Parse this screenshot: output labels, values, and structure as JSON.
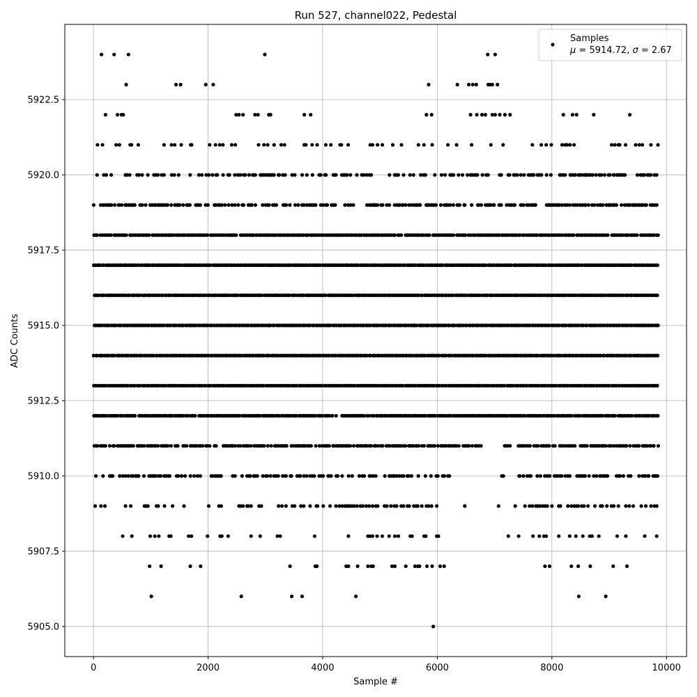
{
  "chart_data": {
    "type": "scatter",
    "title": "Run 527, channel022, Pedestal",
    "xlabel": "Sample #",
    "ylabel": "ADC Counts",
    "xlim": [
      -500,
      10350
    ],
    "ylim": [
      5904.0,
      5925.0
    ],
    "xticks": [
      0,
      2000,
      4000,
      6000,
      8000,
      10000
    ],
    "xtick_labels": [
      "0",
      "2000",
      "4000",
      "6000",
      "8000",
      "10000"
    ],
    "yticks": [
      5905.0,
      5907.5,
      5910.0,
      5912.5,
      5915.0,
      5917.5,
      5920.0,
      5922.5
    ],
    "ytick_labels": [
      "5905.0",
      "5907.5",
      "5910.0",
      "5912.5",
      "5915.0",
      "5917.5",
      "5920.0",
      "5922.5"
    ],
    "grid": true,
    "marker_color": "#000000",
    "legend": {
      "placement": "top-right",
      "entries": [
        {
          "label": "Samples",
          "sublabel_parts": [
            "μ",
            " = 5914.72, ",
            "σ",
            " = 2.67"
          ]
        }
      ]
    },
    "series": [
      {
        "x_range": [
          0,
          9850
        ],
        "count": 9851,
        "mean": 5914.72,
        "std": 2.67,
        "levels": [
          {
            "y": 5905,
            "x": [
              5930
            ]
          },
          {
            "y": 5906,
            "x": [
              1010,
              2580,
              3460,
              3640,
              4580,
              8470,
              8940
            ]
          },
          {
            "y": 5907,
            "x": [
              980,
              1180,
              1690,
              1870,
              3430,
              3870,
              3900,
              4410,
              4450,
              4610,
              4790,
              4850,
              4880,
              5210,
              5260,
              5450,
              5610,
              5660,
              5690,
              5820,
              5910,
              6050,
              6120,
              7880,
              7960,
              8340,
              8460,
              8670,
              9070,
              9310
            ]
          },
          {
            "y": 5908,
            "x": [
              510,
              670,
              990,
              1070,
              1140,
              1320,
              1350,
              1660,
              1710,
              1990,
              2210,
              2240,
              2350,
              2750,
              2910,
              3210,
              3260,
              3860,
              4450,
              4790,
              4830,
              4870,
              4950,
              5040,
              5160,
              5260,
              5320,
              5530,
              5560,
              5770,
              5800,
              5990,
              6020,
              7240,
              7420,
              7670,
              7780,
              7860,
              7900,
              8120,
              8310,
              8420,
              8540,
              8660,
              8700,
              8820,
              9140,
              9290,
              9620,
              9830
            ]
          },
          {
            "y": 5909,
            "x": [
              30,
              130,
              200,
              560,
              650,
              890,
              920,
              950,
              1100,
              1130,
              1240,
              1380,
              1580,
              2010,
              2190,
              2230,
              2540,
              2570,
              2610,
              2680,
              2700,
              2750,
              2890,
              2930,
              3230,
              3290,
              3360,
              3470,
              3510,
              3620,
              3670,
              3780,
              3890,
              3910,
              4010,
              4130,
              4230,
              4290,
              4340,
              4390,
              4410,
              4440,
              4470,
              4510,
              4550,
              4600,
              4660,
              4700,
              4760,
              4810,
              4870,
              4930,
              4960,
              5080,
              5120,
              5190,
              5250,
              5290,
              5370,
              5410,
              5480,
              5510,
              5590,
              5630,
              5660,
              5730,
              5810,
              5850,
              5900,
              5990,
              6480,
              7070,
              7360,
              7530,
              7610,
              7660,
              7720,
              7750,
              7790,
              7840,
              7880,
              7920,
              8000,
              8120,
              8150,
              8280,
              8340,
              8390,
              8430,
              8460,
              8520,
              8560,
              8630,
              8750,
              8850,
              8880,
              8960,
              9040,
              9080,
              9160,
              9290,
              9350,
              9420,
              9560,
              9640,
              9730,
              9790,
              9830
            ]
          }
        ],
        "levels_dense": [
          {
            "y": 5910,
            "x_start": 0,
            "x_end": 9850,
            "gaps": [
              [
                6500,
                7050
              ],
              [
                7150,
                7400
              ]
            ],
            "density": 0.55
          },
          {
            "y": 5911,
            "x_start": 0,
            "x_end": 9850,
            "gaps": [
              [
                6800,
                7150
              ],
              [
                7280,
                7400
              ]
            ],
            "density": 0.8
          },
          {
            "y": 5912,
            "x_start": 0,
            "x_end": 9850,
            "gaps": [],
            "density": 0.95
          },
          {
            "y": 5913,
            "x_start": 0,
            "x_end": 9850,
            "gaps": [],
            "density": 1.0
          },
          {
            "y": 5914,
            "x_start": 0,
            "x_end": 9850,
            "gaps": [],
            "density": 1.0
          },
          {
            "y": 5915,
            "x_start": 0,
            "x_end": 9850,
            "gaps": [],
            "density": 1.0
          },
          {
            "y": 5916,
            "x_start": 0,
            "x_end": 9850,
            "gaps": [],
            "density": 1.0
          },
          {
            "y": 5917,
            "x_start": 0,
            "x_end": 9850,
            "gaps": [],
            "density": 1.0
          },
          {
            "y": 5918,
            "x_start": 0,
            "x_end": 9850,
            "gaps": [],
            "density": 0.95
          },
          {
            "y": 5919,
            "x_start": 0,
            "x_end": 9850,
            "gaps": [
              [
                4550,
                4750
              ]
            ],
            "density": 0.7
          },
          {
            "y": 5920,
            "x_start": 0,
            "x_end": 9850,
            "gaps": [],
            "density": 0.45
          },
          {
            "y": 5921,
            "x_start": 0,
            "x_end": 9850,
            "gaps": [],
            "density": 0.2
          }
        ],
        "levels_sparse_top": [
          {
            "y": 5922,
            "x": [
              210,
              420,
              490,
              520,
              2490,
              2540,
              2610,
              2820,
              2870,
              3060,
              3090,
              3680,
              3790,
              5810,
              5900,
              6580,
              6690,
              6780,
              6840,
              6960,
              7010,
              7090,
              7180,
              7270,
              8200,
              8360,
              8430,
              8730,
              9360
            ]
          },
          {
            "y": 5923,
            "x": [
              570,
              1440,
              1520,
              1960,
              2090,
              5850,
              6350,
              6550,
              6620,
              6680,
              6890,
              6920,
              6960,
              7050
            ]
          },
          {
            "y": 5924,
            "x": [
              140,
              360,
              610,
              2990,
              6880,
              7010
            ]
          }
        ]
      }
    ]
  }
}
